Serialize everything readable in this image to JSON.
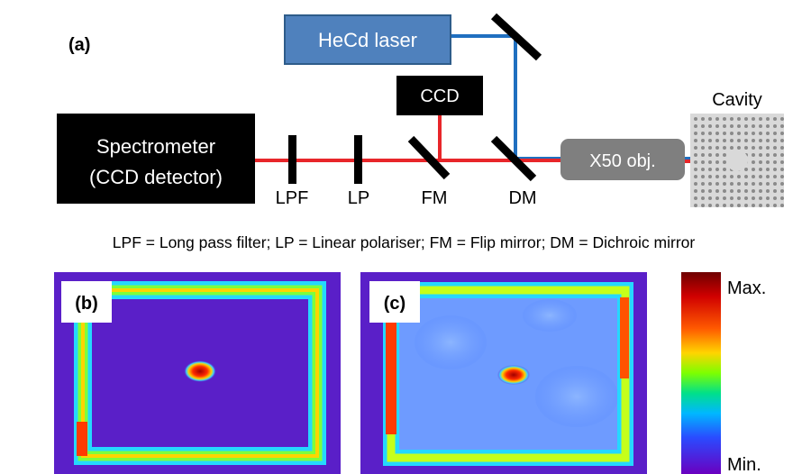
{
  "panel_a": {
    "tag": "(a)",
    "laser": "HeCd laser",
    "ccd": "CCD",
    "spectrometer_line1": "Spectrometer",
    "spectrometer_line2": "(CCD detector)",
    "objective": "X50 obj.",
    "cavity": "Cavity",
    "lpf": "LPF",
    "lp": "LP",
    "fm": "FM",
    "dm": "DM",
    "legend": "LPF = Long pass filter; LP = Linear polariser; FM = Flip mirror; DM = Dichroic mirror"
  },
  "panel_b": {
    "tag": "(b)"
  },
  "panel_c": {
    "tag": "(c)"
  },
  "colorbar": {
    "max": "Max.",
    "min": "Min."
  },
  "colors": {
    "laser_box": "#4F81BD",
    "blue_beam": "#1F6FC0",
    "red_beam": "#E8262A",
    "black_box": "#000000",
    "objective_box": "#7F7F7F",
    "map_background": "#5A1FC8"
  }
}
